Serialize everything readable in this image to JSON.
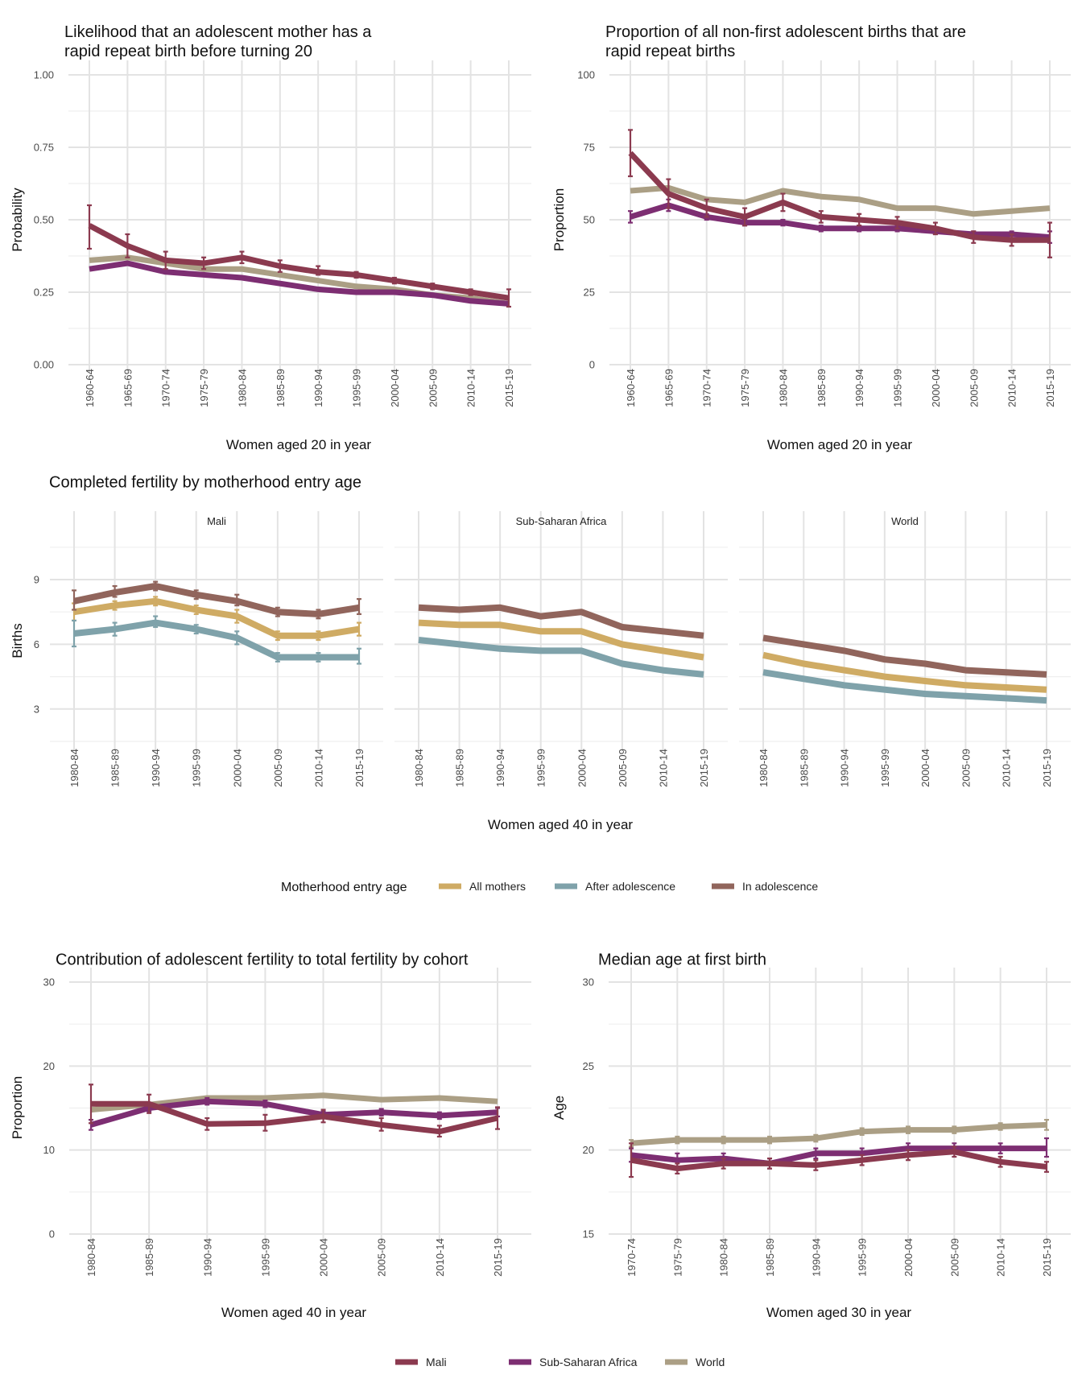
{
  "colors": {
    "Mali": "#8b3a4f",
    "Sub-Saharan Africa": "#7d2e72",
    "World": "#ab9f85",
    "All mothers": "#cfab64",
    "After adolescence": "#7fa2aa",
    "In adolescence": "#91655c",
    "grid_major": "#e3e3e3",
    "grid_minor": "#efefef"
  },
  "legends": {
    "motherhood": {
      "title": "Motherhood entry age",
      "items": [
        "All mothers",
        "After adolescence",
        "In adolescence"
      ]
    },
    "region": {
      "title": "",
      "items": [
        "Mali",
        "Sub-Saharan Africa",
        "World"
      ]
    }
  },
  "chart_data": [
    {
      "id": "rapid-repeat-likelihood",
      "type": "line",
      "title": "Likelihood that an adolescent mother has a\nrapid repeat birth before turning 20",
      "xlabel": "Women aged 20 in year",
      "ylabel": "Probability",
      "ylim": [
        0,
        1
      ],
      "yticks": [
        0,
        0.25,
        0.5,
        0.75,
        1
      ],
      "ytick_labels": [
        "0.00",
        "0.25",
        "0.50",
        "0.75",
        "1.00"
      ],
      "categories": [
        "1960-64",
        "1965-69",
        "1970-74",
        "1975-79",
        "1980-84",
        "1985-89",
        "1990-94",
        "1995-99",
        "2000-04",
        "2005-09",
        "2010-14",
        "2015-19"
      ],
      "grid": true,
      "series": [
        {
          "name": "World",
          "values": [
            0.36,
            0.37,
            0.35,
            0.33,
            0.33,
            0.31,
            0.29,
            0.27,
            0.26,
            0.24,
            0.23,
            0.21
          ]
        },
        {
          "name": "Sub-Saharan Africa",
          "values": [
            0.33,
            0.35,
            0.32,
            0.31,
            0.3,
            0.28,
            0.26,
            0.25,
            0.25,
            0.24,
            0.22,
            0.21
          ]
        },
        {
          "name": "Mali",
          "values": [
            0.48,
            0.41,
            0.36,
            0.35,
            0.37,
            0.34,
            0.32,
            0.31,
            0.29,
            0.27,
            0.25,
            0.23
          ],
          "error_low": [
            0.4,
            0.37,
            0.33,
            0.33,
            0.35,
            0.32,
            0.31,
            0.3,
            0.28,
            0.26,
            0.24,
            0.2
          ],
          "error_high": [
            0.55,
            0.45,
            0.39,
            0.37,
            0.39,
            0.36,
            0.34,
            0.32,
            0.3,
            0.28,
            0.26,
            0.26
          ]
        }
      ]
    },
    {
      "id": "rapid-repeat-proportion",
      "type": "line",
      "title": "Proportion of all non-first adolescent births that are\nrapid repeat births",
      "xlabel": "Women aged 20 in year",
      "ylabel": "Proportion",
      "ylim": [
        0,
        100
      ],
      "yticks": [
        0,
        25,
        50,
        75,
        100
      ],
      "ytick_labels": [
        "0",
        "25",
        "50",
        "75",
        "100"
      ],
      "categories": [
        "1960-64",
        "1965-69",
        "1970-74",
        "1975-79",
        "1980-84",
        "1985-89",
        "1990-94",
        "1995-99",
        "2000-04",
        "2005-09",
        "2010-14",
        "2015-19"
      ],
      "grid": true,
      "series": [
        {
          "name": "World",
          "values": [
            60,
            61,
            57,
            56,
            60,
            58,
            57,
            54,
            54,
            52,
            53,
            54
          ]
        },
        {
          "name": "Sub-Saharan Africa",
          "values": [
            51,
            55,
            51,
            49,
            49,
            47,
            47,
            47,
            46,
            45,
            45,
            44
          ],
          "error_low": [
            49,
            53,
            50,
            48,
            48,
            46,
            46,
            46,
            45,
            44,
            43,
            42
          ],
          "error_high": [
            53,
            57,
            52,
            50,
            50,
            48,
            48,
            48,
            47,
            46,
            46,
            46
          ]
        },
        {
          "name": "Mali",
          "values": [
            73,
            59,
            54,
            51,
            56,
            51,
            50,
            49,
            47,
            44,
            43,
            43
          ],
          "error_low": [
            65,
            54,
            51,
            48,
            53,
            49,
            48,
            47,
            45,
            42,
            41,
            37
          ],
          "error_high": [
            81,
            64,
            57,
            54,
            59,
            53,
            52,
            51,
            49,
            46,
            45,
            49
          ]
        }
      ]
    },
    {
      "id": "completed-fertility",
      "type": "line",
      "title": "Completed fertility by motherhood entry age",
      "xlabel": "Women aged 40 in year",
      "ylabel": "Births",
      "ylim": [
        1.5,
        11.5
      ],
      "yticks": [
        3,
        6,
        9
      ],
      "ytick_labels": [
        "3",
        "6",
        "9"
      ],
      "categories": [
        "1980-84",
        "1985-89",
        "1990-94",
        "1995-99",
        "2000-04",
        "2005-09",
        "2010-14",
        "2015-19"
      ],
      "grid": true,
      "facets": [
        {
          "name": "Mali",
          "series": [
            {
              "name": "All mothers",
              "values": [
                7.5,
                7.8,
                8.0,
                7.6,
                7.3,
                6.4,
                6.4,
                6.7
              ],
              "error_low": [
                7.1,
                7.6,
                7.8,
                7.4,
                7.0,
                6.2,
                6.2,
                6.4
              ],
              "error_high": [
                7.9,
                8.0,
                8.2,
                7.8,
                7.6,
                6.6,
                6.6,
                7.0
              ]
            },
            {
              "name": "After adolescence",
              "values": [
                6.5,
                6.7,
                7.0,
                6.7,
                6.3,
                5.4,
                5.4,
                5.4
              ],
              "error_low": [
                5.9,
                6.4,
                6.8,
                6.5,
                6.0,
                5.2,
                5.2,
                5.1
              ],
              "error_high": [
                7.1,
                7.0,
                7.3,
                6.9,
                6.6,
                5.6,
                5.6,
                5.8
              ]
            },
            {
              "name": "In adolescence",
              "values": [
                8.0,
                8.4,
                8.7,
                8.3,
                8.0,
                7.5,
                7.4,
                7.7
              ],
              "error_low": [
                7.6,
                8.2,
                8.5,
                8.1,
                7.8,
                7.3,
                7.2,
                7.4
              ],
              "error_high": [
                8.5,
                8.7,
                8.9,
                8.5,
                8.3,
                7.7,
                7.6,
                8.1
              ]
            }
          ]
        },
        {
          "name": "Sub-Saharan Africa",
          "series": [
            {
              "name": "All mothers",
              "values": [
                7.0,
                6.9,
                6.9,
                6.6,
                6.6,
                6.0,
                5.7,
                5.4
              ]
            },
            {
              "name": "After adolescence",
              "values": [
                6.2,
                6.0,
                5.8,
                5.7,
                5.7,
                5.1,
                4.8,
                4.6
              ]
            },
            {
              "name": "In adolescence",
              "values": [
                7.7,
                7.6,
                7.7,
                7.3,
                7.5,
                6.8,
                6.6,
                6.4
              ]
            }
          ]
        },
        {
          "name": "World",
          "series": [
            {
              "name": "All mothers",
              "values": [
                5.5,
                5.1,
                4.8,
                4.5,
                4.3,
                4.1,
                4.0,
                3.9
              ]
            },
            {
              "name": "After adolescence",
              "values": [
                4.7,
                4.4,
                4.1,
                3.9,
                3.7,
                3.6,
                3.5,
                3.4
              ]
            },
            {
              "name": "In adolescence",
              "values": [
                6.3,
                6.0,
                5.7,
                5.3,
                5.1,
                4.8,
                4.7,
                4.6
              ]
            }
          ]
        }
      ]
    },
    {
      "id": "adolescent-contribution",
      "type": "line",
      "title": "Contribution of adolescent fertility to total fertility by cohort",
      "xlabel": "Women aged 40 in year",
      "ylabel": "Proportion",
      "ylim": [
        0,
        30
      ],
      "yticks": [
        0,
        10,
        20,
        30
      ],
      "ytick_labels": [
        "0",
        "10",
        "20",
        "30"
      ],
      "categories": [
        "1980-84",
        "1985-89",
        "1990-94",
        "1995-99",
        "2000-04",
        "2005-09",
        "2010-14",
        "2015-19"
      ],
      "grid": true,
      "series": [
        {
          "name": "World",
          "values": [
            14.8,
            15.4,
            16.2,
            16.2,
            16.5,
            16.0,
            16.2,
            15.8
          ]
        },
        {
          "name": "Sub-Saharan Africa",
          "values": [
            13.0,
            15.0,
            15.8,
            15.5,
            14.2,
            14.5,
            14.1,
            14.5
          ],
          "error_low": [
            12.4,
            14.6,
            15.4,
            15.1,
            13.8,
            14.1,
            13.7,
            14.0
          ],
          "error_high": [
            13.6,
            15.4,
            16.2,
            15.9,
            14.6,
            14.9,
            14.5,
            15.0
          ]
        },
        {
          "name": "Mali",
          "values": [
            15.5,
            15.5,
            13.1,
            13.2,
            14.0,
            13.0,
            12.2,
            13.8
          ],
          "error_low": [
            13.2,
            14.4,
            12.4,
            12.3,
            13.3,
            12.3,
            11.6,
            12.5
          ],
          "error_high": [
            17.8,
            16.6,
            13.8,
            14.2,
            14.8,
            13.8,
            12.9,
            15.1
          ]
        }
      ]
    },
    {
      "id": "median-age-first-birth",
      "type": "line",
      "title": "Median age at first birth",
      "xlabel": "Women aged 30 in year",
      "ylabel": "Age",
      "ylim": [
        15,
        30
      ],
      "yticks": [
        15,
        20,
        25,
        30
      ],
      "ytick_labels": [
        "15",
        "20",
        "25",
        "30"
      ],
      "categories": [
        "1970-74",
        "1975-79",
        "1980-84",
        "1985-89",
        "1990-94",
        "1995-99",
        "2000-04",
        "2005-09",
        "2010-14",
        "2015-19"
      ],
      "grid": true,
      "series": [
        {
          "name": "World",
          "values": [
            20.4,
            20.6,
            20.6,
            20.6,
            20.7,
            21.1,
            21.2,
            21.2,
            21.4,
            21.5
          ],
          "error_low": [
            20.2,
            20.4,
            20.4,
            20.4,
            20.5,
            20.9,
            21.0,
            21.0,
            21.2,
            21.2
          ],
          "error_high": [
            20.6,
            20.8,
            20.8,
            20.8,
            20.9,
            21.3,
            21.4,
            21.4,
            21.6,
            21.8
          ]
        },
        {
          "name": "Sub-Saharan Africa",
          "values": [
            19.7,
            19.4,
            19.5,
            19.2,
            19.8,
            19.8,
            20.1,
            20.1,
            20.1,
            20.1
          ],
          "error_low": [
            19.3,
            19.0,
            19.2,
            18.9,
            19.5,
            19.5,
            19.8,
            19.8,
            19.8,
            19.6
          ],
          "error_high": [
            20.1,
            19.8,
            19.8,
            19.5,
            20.1,
            20.1,
            20.4,
            20.4,
            20.4,
            20.7
          ]
        },
        {
          "name": "Mali",
          "values": [
            19.4,
            18.9,
            19.2,
            19.2,
            19.1,
            19.4,
            19.7,
            19.9,
            19.3,
            19.0
          ],
          "error_low": [
            18.4,
            18.6,
            18.9,
            18.9,
            18.8,
            19.1,
            19.4,
            19.6,
            19.0,
            18.7
          ],
          "error_high": [
            20.4,
            19.2,
            19.5,
            19.5,
            19.4,
            19.7,
            20.0,
            20.2,
            19.6,
            19.3
          ]
        }
      ]
    }
  ]
}
